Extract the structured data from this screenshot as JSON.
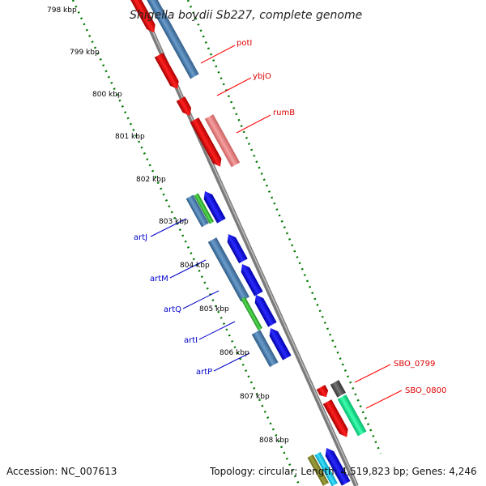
{
  "title": "Shigella boydii Sb227, complete genome",
  "footer": {
    "accession": "Accession: NC_007613",
    "summary": "Topology: circular; Length: 4,519,823 bp; Genes: 4,246"
  },
  "scale_ticks": [
    "798 kbp",
    "799 kbp",
    "800 kbp",
    "801 kbp",
    "802 kbp",
    "803 kbp",
    "804 kbp",
    "805 kbp",
    "806 kbp",
    "807 kbp",
    "808 kbp"
  ],
  "gene_labels": {
    "potI": "potI",
    "ybjO": "ybjO",
    "rumB": "rumB",
    "artJ": "artJ",
    "artM": "artM",
    "artQ": "artQ",
    "artI": "artI",
    "artP": "artP",
    "SBO_0799": "SBO_0799",
    "SBO_0800": "SBO_0800"
  },
  "colors": {
    "red": "#ff0000",
    "steelblue": "#4682b4",
    "blue": "#0000ff",
    "green": "#33cc33",
    "pink": "#f08080",
    "gray": "#555555",
    "aquamarine": "#00ff99",
    "backbone": "#888888",
    "tick_green": "#007700"
  }
}
